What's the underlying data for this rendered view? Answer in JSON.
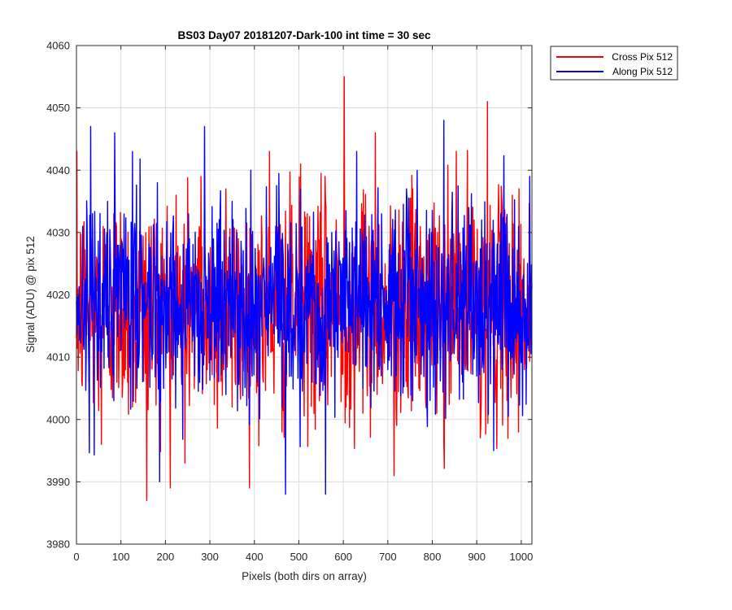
{
  "chart_data": {
    "type": "line",
    "title": "BS03 Day07 20181207-Dark-100 int time = 30 sec",
    "xlabel": "Pixels (both dirs on array)",
    "ylabel": "Signal (ADU) @ pix 512",
    "xlim": [
      0,
      1024
    ],
    "ylim": [
      3980,
      4060
    ],
    "xticks": [
      0,
      100,
      200,
      300,
      400,
      500,
      600,
      700,
      800,
      900,
      1000
    ],
    "yticks": [
      3980,
      3990,
      4000,
      4010,
      4020,
      4030,
      4040,
      4050,
      4060
    ],
    "grid": true,
    "legend_position": "outside-top-right",
    "series": [
      {
        "name": "Cross Pix 512",
        "color": "#ff0000",
        "mean": 4018,
        "spread": 9,
        "min": 3987,
        "max": 4055,
        "x": [
          0,
          14,
          28,
          42,
          56,
          70,
          84,
          98,
          112,
          126,
          140,
          154,
          158,
          168,
          182,
          196,
          210,
          224,
          238,
          244,
          252,
          266,
          280,
          294,
          308,
          322,
          336,
          350,
          364,
          378,
          392,
          406,
          420,
          434,
          448,
          462,
          476,
          490,
          504,
          518,
          532,
          546,
          560,
          574,
          588,
          602,
          616,
          630,
          644,
          658,
          672,
          686,
          700,
          714,
          728,
          742,
          756,
          770,
          784,
          798,
          812,
          826,
          840,
          854,
          868,
          882,
          896,
          910,
          924,
          938,
          952,
          966,
          980,
          994,
          1008,
          1024
        ],
        "y": [
          4013,
          4028,
          4006,
          4024,
          3996,
          4017,
          4033,
          4011,
          4021,
          4002,
          4027,
          4015,
          3987,
          4031,
          4009,
          4019,
          4004,
          4036,
          4014,
          3993,
          4025,
          4012,
          4039,
          4008,
          4023,
          4016,
          4037,
          4002,
          4029,
          4011,
          4034,
          4019,
          4006,
          4043,
          4015,
          3998,
          4027,
          4013,
          4041,
          4009,
          4021,
          4003,
          4035,
          4017,
          4012,
          4055,
          4014,
          4024,
          4001,
          4031,
          4046,
          4010,
          4019,
          3991,
          4028,
          4016,
          4037,
          4005,
          4022,
          4013,
          4030,
          3996,
          4021,
          4043,
          4009,
          4018,
          4025,
          4003,
          4051,
          4014,
          4030,
          4007,
          4036,
          3998,
          4017,
          4012
        ]
      },
      {
        "name": "Along Pix 512",
        "color": "#0000ff",
        "mean": 4019,
        "spread": 8,
        "min": 3988,
        "max": 4048,
        "x": [
          0,
          14,
          28,
          32,
          42,
          56,
          70,
          84,
          98,
          112,
          126,
          140,
          154,
          168,
          182,
          196,
          210,
          224,
          238,
          252,
          266,
          280,
          288,
          294,
          308,
          322,
          336,
          350,
          364,
          378,
          392,
          406,
          420,
          434,
          448,
          462,
          470,
          476,
          490,
          504,
          518,
          532,
          546,
          560,
          574,
          588,
          602,
          616,
          630,
          644,
          658,
          672,
          686,
          700,
          714,
          728,
          742,
          756,
          770,
          784,
          798,
          812,
          826,
          840,
          854,
          868,
          882,
          896,
          910,
          924,
          938,
          952,
          966,
          980,
          994,
          1008,
          1024
        ],
        "y": [
          4019,
          4031,
          4008,
          4047,
          4024,
          4012,
          4035,
          4003,
          4028,
          4016,
          4043,
          4009,
          4022,
          4014,
          4038,
          4005,
          4026,
          4019,
          4011,
          4033,
          4007,
          4022,
          4047,
          4013,
          4029,
          4016,
          4004,
          4035,
          4020,
          4012,
          4040,
          4006,
          4024,
          4017,
          4031,
          4002,
          3988,
          4025,
          4014,
          4037,
          4009,
          4022,
          4018,
          3988,
          4030,
          4010,
          4026,
          4015,
          4043,
          4005,
          4022,
          4019,
          4033,
          4008,
          4027,
          4014,
          4037,
          4003,
          4021,
          4016,
          4030,
          4009,
          4048,
          4012,
          4025,
          4006,
          4034,
          4018,
          4021,
          4013,
          3995,
          4028,
          4017,
          4010,
          4031,
          4015,
          4021
        ]
      }
    ]
  }
}
